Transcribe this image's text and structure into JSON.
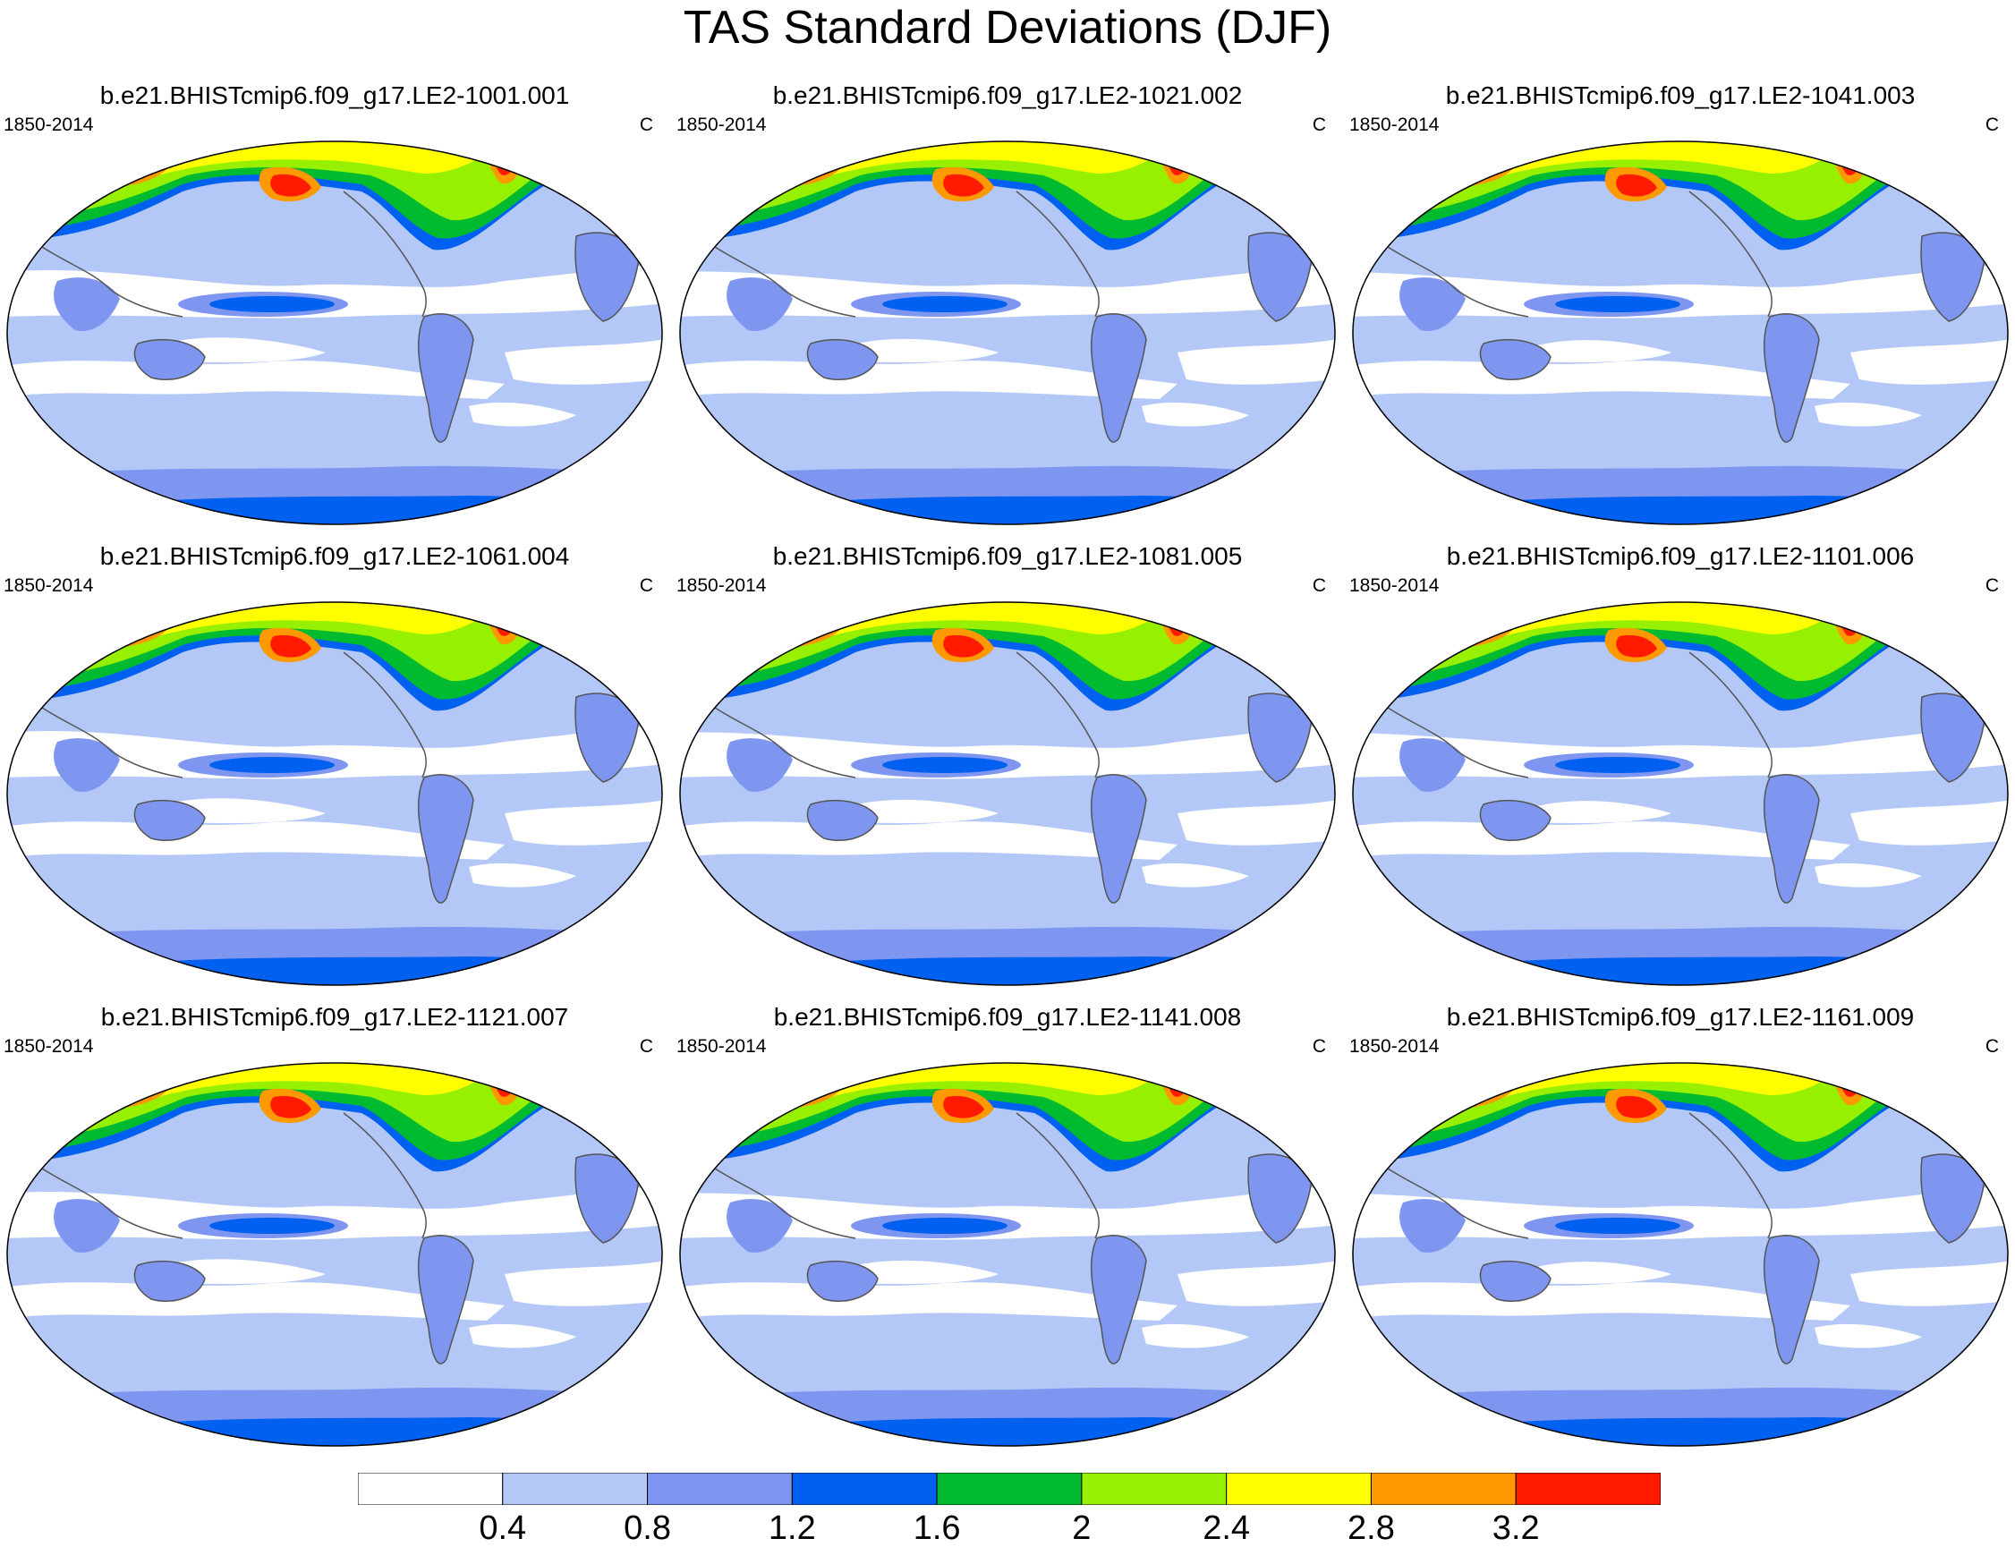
{
  "title": "TAS Standard Deviations (DJF)",
  "panels": [
    {
      "title": "b.e21.BHISTcmip6.f09_g17.LE2-1001.001",
      "period": "1850-2014",
      "units": "C"
    },
    {
      "title": "b.e21.BHISTcmip6.f09_g17.LE2-1021.002",
      "period": "1850-2014",
      "units": "C"
    },
    {
      "title": "b.e21.BHISTcmip6.f09_g17.LE2-1041.003",
      "period": "1850-2014",
      "units": "C"
    },
    {
      "title": "b.e21.BHISTcmip6.f09_g17.LE2-1061.004",
      "period": "1850-2014",
      "units": "C"
    },
    {
      "title": "b.e21.BHISTcmip6.f09_g17.LE2-1081.005",
      "period": "1850-2014",
      "units": "C"
    },
    {
      "title": "b.e21.BHISTcmip6.f09_g17.LE2-1101.006",
      "period": "1850-2014",
      "units": "C"
    },
    {
      "title": "b.e21.BHISTcmip6.f09_g17.LE2-1121.007",
      "period": "1850-2014",
      "units": "C"
    },
    {
      "title": "b.e21.BHISTcmip6.f09_g17.LE2-1141.008",
      "period": "1850-2014",
      "units": "C"
    },
    {
      "title": "b.e21.BHISTcmip6.f09_g17.LE2-1161.009",
      "period": "1850-2014",
      "units": "C"
    }
  ],
  "colorbar": {
    "labels": [
      "0.4",
      "0.8",
      "1.2",
      "1.6",
      "2",
      "2.4",
      "2.8",
      "3.2"
    ],
    "colors": [
      "#ffffff",
      "#b4c8f8",
      "#7f96f0",
      "#0060f0",
      "#00bb30",
      "#96f000",
      "#ffff00",
      "#ff9900",
      "#ff1a00"
    ]
  },
  "colors": {
    "coast": "#555555",
    "outline": "#000000"
  }
}
